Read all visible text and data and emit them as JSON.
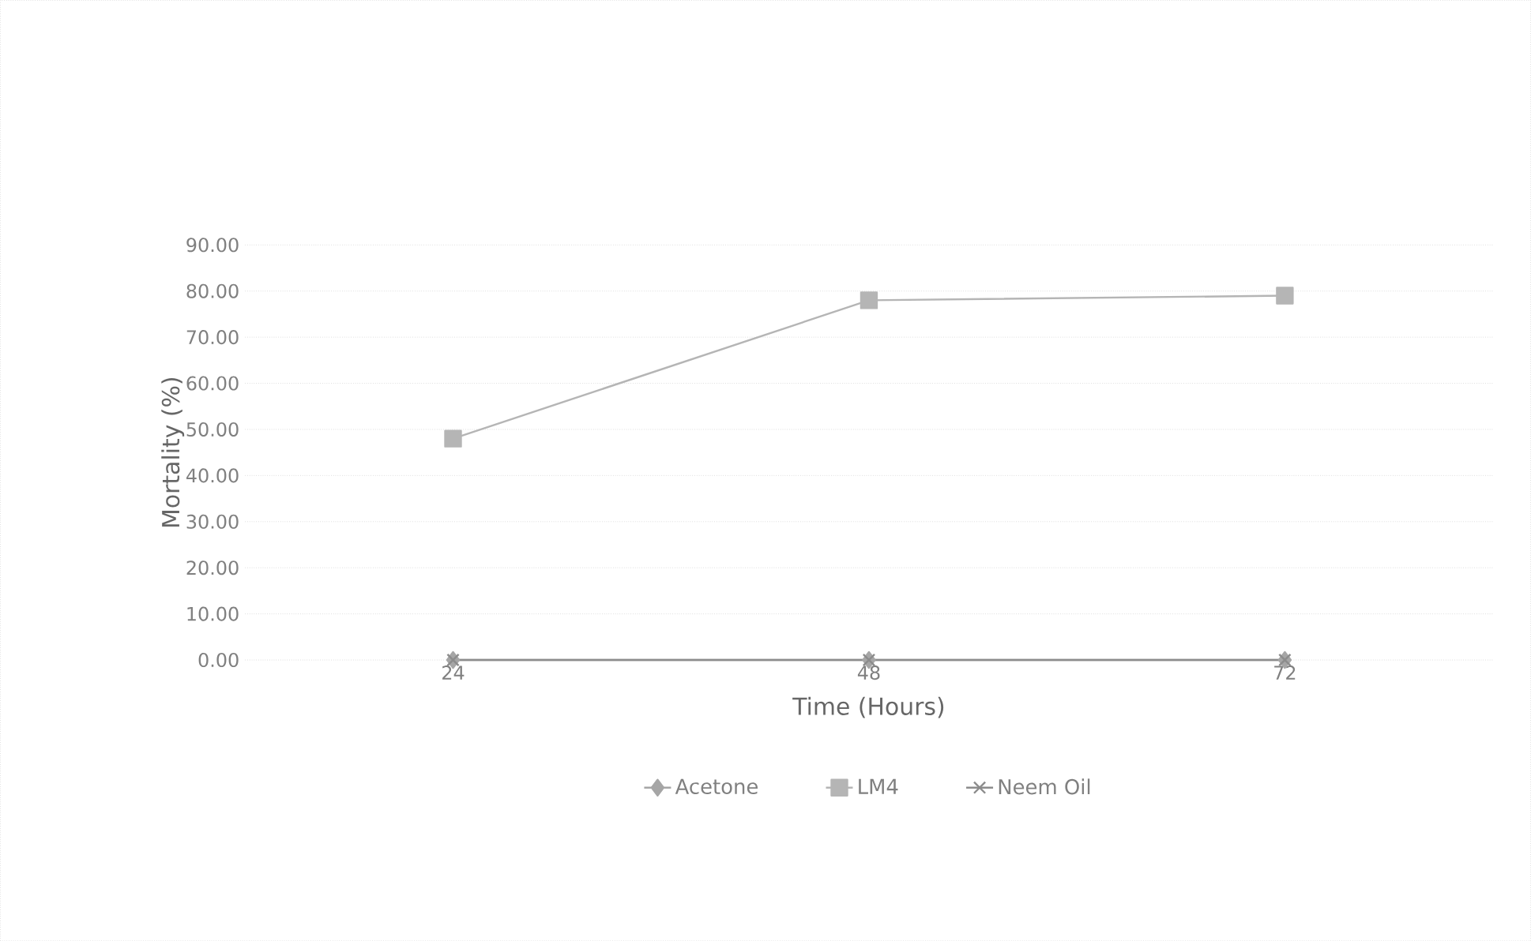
{
  "chart_data": {
    "type": "line",
    "xlabel": "Time (Hours)",
    "ylabel": "Mortality (%)",
    "categories": [
      "24",
      "48",
      "72"
    ],
    "series": [
      {
        "name": "Acetone",
        "color": "#a6a6a6",
        "marker": "diamond",
        "values": [
          0,
          0,
          0
        ]
      },
      {
        "name": "LM4",
        "color": "#b5b5b5",
        "marker": "square",
        "values": [
          48,
          78,
          79
        ]
      },
      {
        "name": "Neem Oil",
        "color": "#8c8c8c",
        "marker": "cross",
        "values": [
          0,
          0,
          0
        ]
      }
    ],
    "ylim": [
      0,
      90
    ],
    "yticks": [
      {
        "value": 0,
        "label": "0.00"
      },
      {
        "value": 10,
        "label": "10.00"
      },
      {
        "value": 20,
        "label": "20.00"
      },
      {
        "value": 30,
        "label": "30.00"
      },
      {
        "value": 40,
        "label": "40.00"
      },
      {
        "value": 50,
        "label": "50.00"
      },
      {
        "value": 60,
        "label": "60.00"
      },
      {
        "value": 70,
        "label": "70.00"
      },
      {
        "value": 80,
        "label": "80.00"
      },
      {
        "value": 90,
        "label": "90.00"
      }
    ],
    "grid": "y",
    "legend": "bottom",
    "line_style": "solid"
  }
}
